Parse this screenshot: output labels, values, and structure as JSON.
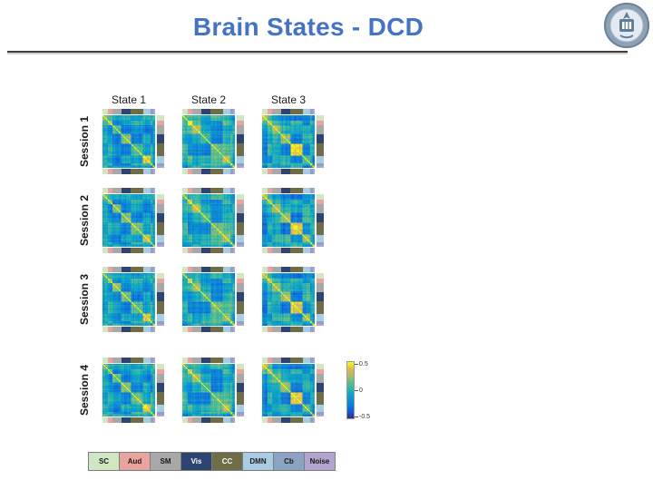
{
  "slide": {
    "title": "Brain States - DCD",
    "title_color": "#4472c4"
  },
  "figure": {
    "col_labels": [
      "State 1",
      "State 2",
      "State 3"
    ],
    "row_labels": [
      "Session 1",
      "Session 2",
      "Session 3",
      "Session 4"
    ]
  },
  "colorbar": {
    "tick_labels": [
      "0.5",
      "0",
      "-0.5"
    ]
  },
  "legend": {
    "items": [
      {
        "label": "SC",
        "color": "#cfe7c2",
        "text": "#1a1a1a"
      },
      {
        "label": "Aud",
        "color": "#e8a49e",
        "text": "#1a1a1a"
      },
      {
        "label": "SM",
        "color": "#a8a8a8",
        "text": "#1a1a1a"
      },
      {
        "label": "Vis",
        "color": "#2d4370",
        "text": "#ffffff"
      },
      {
        "label": "CC",
        "color": "#6f6d48",
        "text": "#ffffff"
      },
      {
        "label": "DMN",
        "color": "#aacbe4",
        "text": "#1a1a1a"
      },
      {
        "label": "Cb",
        "color": "#8ba3c2",
        "text": "#1a1a1a"
      },
      {
        "label": "Noise",
        "color": "#b2a4cc",
        "text": "#1a1a1a"
      }
    ]
  },
  "chart_data": {
    "type": "heatmap",
    "title": "Brain States - DCD",
    "description": "4x3 grid of functional connectivity matrices (brain region x region correlation, parula colormap, bright yellow unit diagonal, block structure by network). Columns are recurring brain states, rows are scan sessions; exact per-cell values are not legible at this scale and are reproduced stochastically with the stated block structure.",
    "rows": [
      "Session 1",
      "Session 2",
      "Session 3",
      "Session 4"
    ],
    "columns": [
      "State 1",
      "State 2",
      "State 3"
    ],
    "value_range": [
      -0.5,
      0.5
    ],
    "colorbar_ticks": [
      0.5,
      0,
      -0.5
    ],
    "legend_position": "bottom",
    "networks": [
      {
        "name": "SC",
        "size": 5,
        "color": "#cfe7c2"
      },
      {
        "name": "Aud",
        "size": 4,
        "color": "#e8a49e"
      },
      {
        "name": "SM",
        "size": 8,
        "color": "#a8a8a8"
      },
      {
        "name": "Vis",
        "size": 9,
        "color": "#2d4370"
      },
      {
        "name": "CC",
        "size": 11,
        "color": "#6f6d48"
      },
      {
        "name": "DMN",
        "size": 7,
        "color": "#aacbe4"
      },
      {
        "name": "Cb",
        "size": 2,
        "color": "#8ba3c2"
      },
      {
        "name": "Noise",
        "size": 2,
        "color": "#b2a4cc"
      }
    ]
  }
}
